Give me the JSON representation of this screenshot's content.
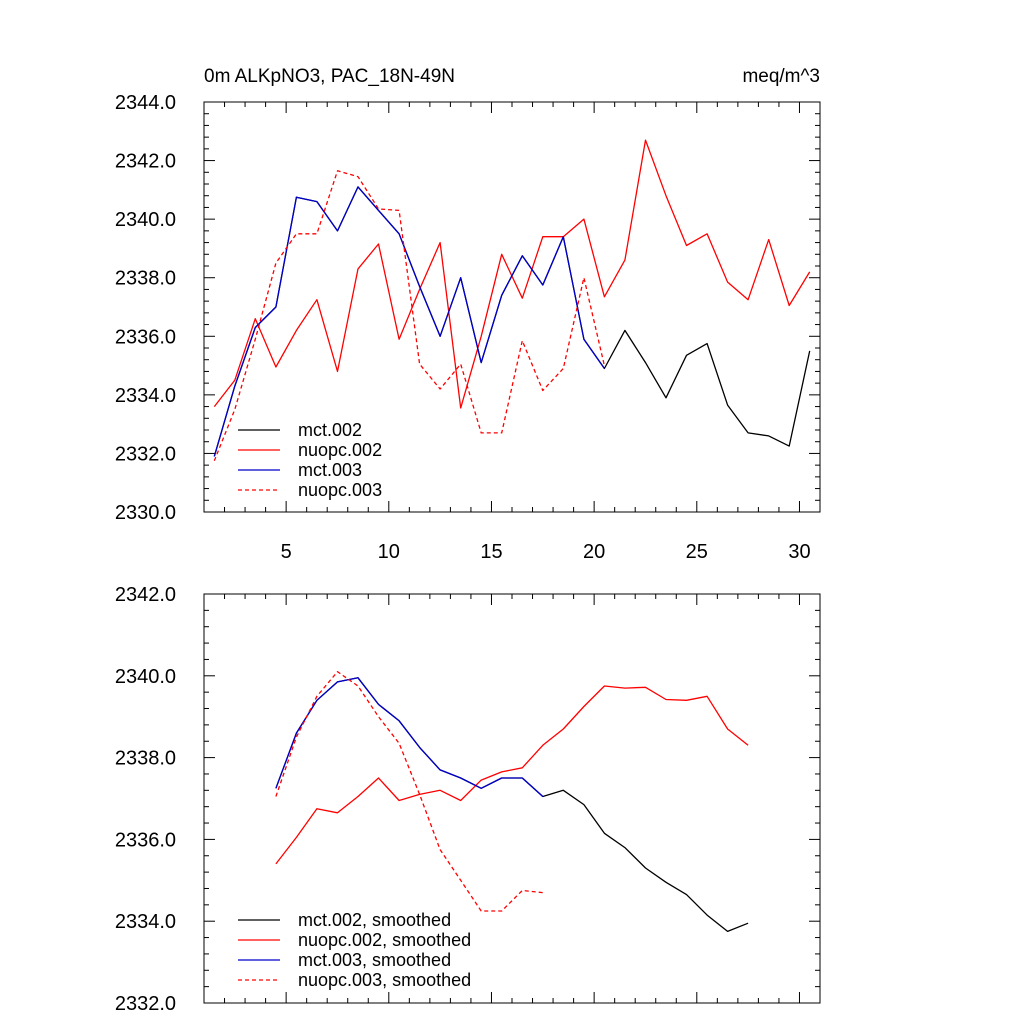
{
  "chart_data": [
    {
      "type": "line",
      "title": "0m ALKpNO3, PAC_18N-49N",
      "units": "meq/m^3",
      "xlim": [
        1,
        31
      ],
      "ylim": [
        2330,
        2344
      ],
      "xticks": [
        5,
        10,
        15,
        20,
        25,
        30
      ],
      "yticks": [
        2330.0,
        2332.0,
        2334.0,
        2336.0,
        2338.0,
        2340.0,
        2342.0,
        2344.0
      ],
      "ytick_labels": [
        "2330.0",
        "2332.0",
        "2334.0",
        "2336.0",
        "2338.0",
        "2340.0",
        "2342.0",
        "2344.0"
      ],
      "xtick_labels": [
        "5",
        "10",
        "15",
        "20",
        "25",
        "30"
      ],
      "legend_position": "bottom-left",
      "series": [
        {
          "name": "mct.002",
          "color": "#000000",
          "dash": false,
          "x": [
            1.5,
            2.5,
            3.5,
            4.5,
            5.5,
            6.5,
            7.5,
            8.5,
            9.5,
            10.5,
            11.5,
            12.5,
            13.5,
            14.5,
            15.5,
            16.5,
            17.5,
            18.5,
            19.5,
            20.5,
            21.5,
            22.5,
            23.5,
            24.5,
            25.5,
            26.5,
            27.5,
            28.5,
            29.5,
            30.5
          ],
          "y": [
            2331.9,
            2334.3,
            2336.3,
            2337.0,
            2340.75,
            2340.6,
            2339.6,
            2341.1,
            2340.3,
            2339.5,
            2337.7,
            2336.0,
            2338.0,
            2335.1,
            2337.4,
            2338.75,
            2337.75,
            2339.4,
            2335.9,
            2334.9,
            2336.2,
            2335.1,
            2333.9,
            2335.35,
            2335.75,
            2333.65,
            2332.7,
            2332.6,
            2332.25,
            2335.5
          ]
        },
        {
          "name": "nuopc.002",
          "color": "#ff0000",
          "dash": false,
          "x": [
            1.5,
            2.5,
            3.5,
            4.5,
            5.5,
            6.5,
            7.5,
            8.5,
            9.5,
            10.5,
            11.5,
            12.5,
            13.5,
            14.5,
            15.5,
            16.5,
            17.5,
            18.5,
            19.5,
            20.5,
            21.5,
            22.5,
            23.5,
            24.5,
            25.5,
            26.5,
            27.5,
            28.5,
            29.5,
            30.5
          ],
          "y": [
            2333.6,
            2334.5,
            2336.6,
            2334.95,
            2336.2,
            2337.25,
            2334.8,
            2338.3,
            2339.15,
            2335.9,
            2337.6,
            2339.2,
            2333.55,
            2336.0,
            2338.8,
            2337.3,
            2339.4,
            2339.4,
            2340.0,
            2337.35,
            2338.6,
            2342.7,
            2340.8,
            2339.1,
            2339.5,
            2337.85,
            2337.25,
            2339.3,
            2337.05,
            2338.2
          ]
        },
        {
          "name": "mct.003",
          "color": "#0000cc",
          "dash": false,
          "x": [
            1.5,
            2.5,
            3.5,
            4.5,
            5.5,
            6.5,
            7.5,
            8.5,
            9.5,
            10.5,
            11.5,
            12.5,
            13.5,
            14.5,
            15.5,
            16.5,
            17.5,
            18.5,
            19.5,
            20.5
          ],
          "y": [
            2331.9,
            2334.3,
            2336.3,
            2337.0,
            2340.75,
            2340.6,
            2339.6,
            2341.1,
            2340.3,
            2339.5,
            2337.7,
            2336.0,
            2338.0,
            2335.1,
            2337.4,
            2338.75,
            2337.75,
            2339.4,
            2335.9,
            2334.9
          ]
        },
        {
          "name": "nuopc.003",
          "color": "#ff0000",
          "dash": true,
          "x": [
            1.5,
            2.5,
            3.5,
            4.5,
            5.5,
            6.5,
            7.5,
            8.5,
            9.5,
            10.5,
            11.5,
            12.5,
            13.5,
            14.5,
            15.5,
            16.5,
            17.5,
            18.5,
            19.5,
            20.5
          ],
          "y": [
            2331.75,
            2333.5,
            2335.9,
            2338.5,
            2339.5,
            2339.5,
            2341.65,
            2341.45,
            2340.35,
            2340.3,
            2335.05,
            2334.2,
            2335.05,
            2332.7,
            2332.7,
            2335.85,
            2334.15,
            2334.9,
            2338.0,
            2335.0
          ]
        }
      ]
    },
    {
      "type": "line",
      "xlim": [
        1,
        31
      ],
      "ylim": [
        2332,
        2342
      ],
      "xticks": [
        5,
        10,
        15,
        20,
        25,
        30
      ],
      "yticks": [
        2332.0,
        2334.0,
        2336.0,
        2338.0,
        2340.0,
        2342.0
      ],
      "ytick_labels": [
        "2332.0",
        "2334.0",
        "2336.0",
        "2338.0",
        "2340.0",
        "2342.0"
      ],
      "legend_position": "bottom-left",
      "series": [
        {
          "name": "mct.002, smoothed",
          "color": "#000000",
          "dash": false,
          "x": [
            4.5,
            5.5,
            6.5,
            7.5,
            8.5,
            9.5,
            10.5,
            11.5,
            12.5,
            13.5,
            14.5,
            15.5,
            16.5,
            17.5,
            18.5,
            19.5,
            20.5,
            21.5,
            22.5,
            23.5,
            24.5,
            25.5,
            26.5,
            27.5
          ],
          "y": [
            2337.25,
            2338.6,
            2339.4,
            2339.85,
            2339.95,
            2339.3,
            2338.9,
            2338.25,
            2337.7,
            2337.5,
            2337.25,
            2337.5,
            2337.5,
            2337.05,
            2337.2,
            2336.85,
            2336.15,
            2335.8,
            2335.3,
            2334.95,
            2334.65,
            2334.15,
            2333.75,
            2333.95
          ]
        },
        {
          "name": "nuopc.002, smoothed",
          "color": "#ff0000",
          "dash": false,
          "x": [
            4.5,
            5.5,
            6.5,
            7.5,
            8.5,
            9.5,
            10.5,
            11.5,
            12.5,
            13.5,
            14.5,
            15.5,
            16.5,
            17.5,
            18.5,
            19.5,
            20.5,
            21.5,
            22.5,
            23.5,
            24.5,
            25.5,
            26.5,
            27.5
          ],
          "y": [
            2335.4,
            2336.05,
            2336.75,
            2336.65,
            2337.05,
            2337.5,
            2336.95,
            2337.1,
            2337.2,
            2336.95,
            2337.45,
            2337.65,
            2337.75,
            2338.3,
            2338.7,
            2339.25,
            2339.75,
            2339.7,
            2339.72,
            2339.42,
            2339.4,
            2339.5,
            2338.7,
            2338.3
          ]
        },
        {
          "name": "mct.003, smoothed",
          "color": "#0000cc",
          "dash": false,
          "x": [
            4.5,
            5.5,
            6.5,
            7.5,
            8.5,
            9.5,
            10.5,
            11.5,
            12.5,
            13.5,
            14.5,
            15.5,
            16.5,
            17.5
          ],
          "y": [
            2337.25,
            2338.6,
            2339.4,
            2339.85,
            2339.95,
            2339.3,
            2338.9,
            2338.25,
            2337.7,
            2337.5,
            2337.25,
            2337.5,
            2337.5,
            2337.05
          ]
        },
        {
          "name": "nuopc.003, smoothed",
          "color": "#ff0000",
          "dash": true,
          "x": [
            4.5,
            5.5,
            6.5,
            7.5,
            8.5,
            9.5,
            10.5,
            11.5,
            12.5,
            13.5,
            14.5,
            15.5,
            16.5,
            17.5
          ],
          "y": [
            2337.05,
            2338.5,
            2339.5,
            2340.1,
            2339.75,
            2339.0,
            2338.35,
            2337.1,
            2335.75,
            2335.0,
            2334.25,
            2334.25,
            2334.75,
            2334.7
          ]
        }
      ]
    }
  ]
}
